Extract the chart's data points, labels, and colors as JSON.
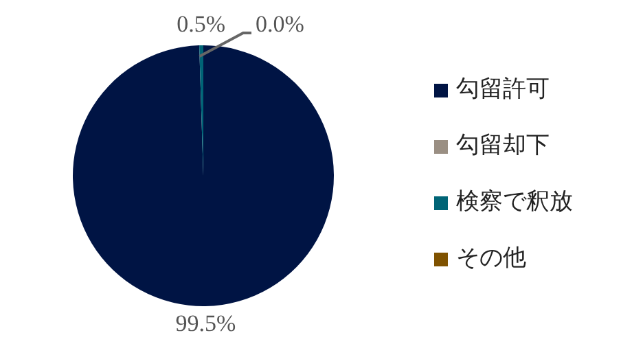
{
  "chart_data": {
    "type": "pie",
    "categories": [
      "勾留許可",
      "勾留却下",
      "検察で釈放",
      "その他"
    ],
    "values": [
      99.5,
      0.0,
      0.5,
      0.0
    ],
    "colors": [
      "#001444",
      "#9a8f83",
      "#006476",
      "#7f5200"
    ],
    "value_labels": [
      "99.5%",
      "0.0%",
      "0.5%",
      null
    ],
    "legend": "right"
  }
}
